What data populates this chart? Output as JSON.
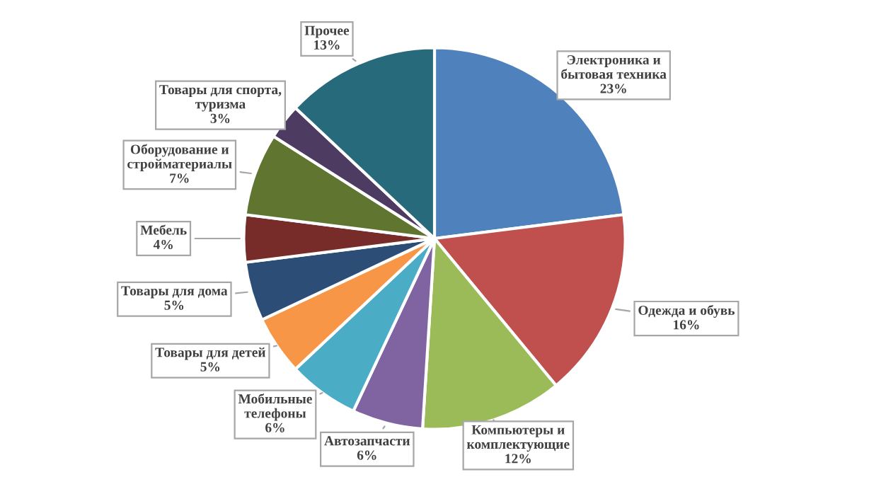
{
  "chart_data": {
    "type": "pie",
    "categories": [
      "Электроника и\nбытовая техника",
      "Одежда и обувь",
      "Компьютеры и\nкомплектующие",
      "Автозапчасти",
      "Мобильные\nтелефоны",
      "Товары для детей",
      "Товары для дома",
      "Мебель",
      "Оборудование и\nстройматериалы",
      "Товары для спорта,\nтуризма",
      "Прочее"
    ],
    "values": [
      23,
      16,
      12,
      6,
      6,
      5,
      5,
      4,
      7,
      3,
      13
    ],
    "colors": [
      "#4f81bd",
      "#c0504d",
      "#9bbb59",
      "#8064a2",
      "#4bacc6",
      "#f79646",
      "#2c4d75",
      "#772c2a",
      "#5f7530",
      "#4d3b62",
      "#276a7c"
    ],
    "value_labels": [
      "23%",
      "16%",
      "12%",
      "6%",
      "6%",
      "5%",
      "5%",
      "4%",
      "7%",
      "3%",
      "13%"
    ],
    "legend": false
  }
}
